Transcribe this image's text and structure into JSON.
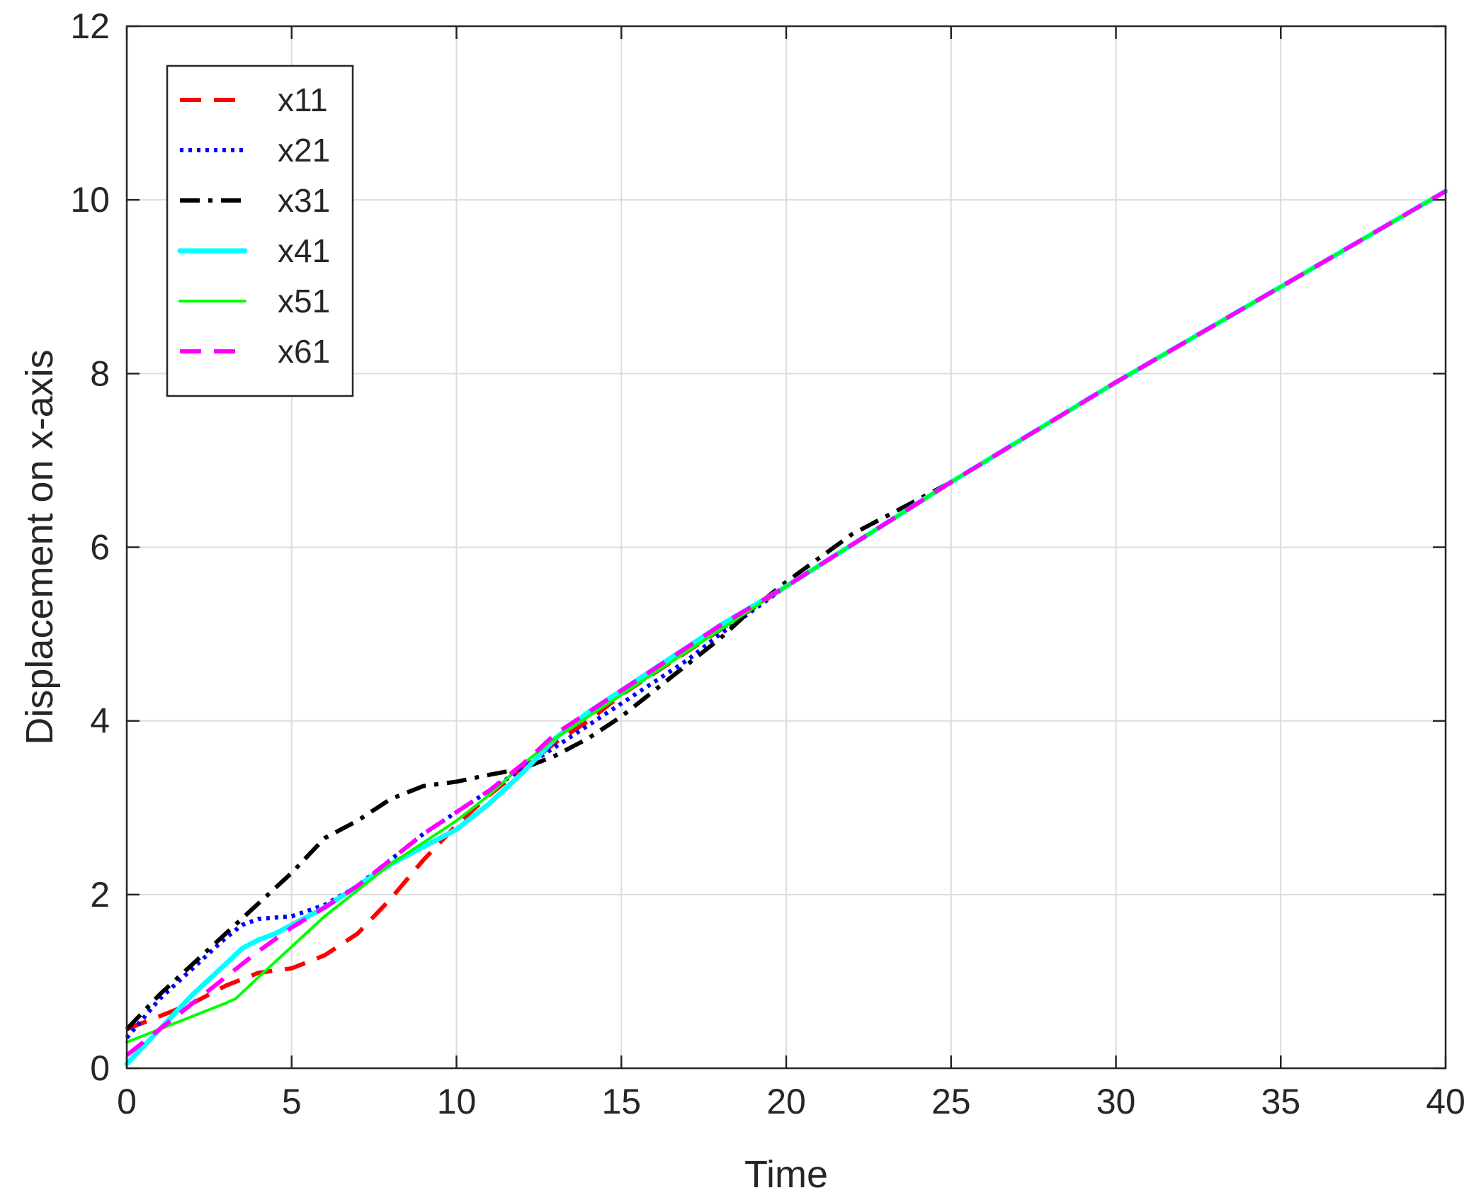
{
  "chart_data": {
    "type": "line",
    "xlabel": "Time",
    "ylabel": "Displacement on x-axis",
    "xlim": [
      0,
      40
    ],
    "ylim": [
      0,
      12
    ],
    "xticks": [
      "0",
      "5",
      "10",
      "15",
      "20",
      "25",
      "30",
      "35",
      "40"
    ],
    "yticks": [
      "0",
      "2",
      "4",
      "6",
      "8",
      "10",
      "12"
    ],
    "grid": true,
    "legend_position": "top-left",
    "series": [
      {
        "name": "x11",
        "color": "#ff0000",
        "style": "dashed",
        "x": [
          0,
          1,
          2,
          3,
          4,
          5,
          6,
          7,
          8,
          9,
          10,
          11,
          12,
          13,
          14,
          15,
          16,
          17,
          18,
          20,
          25,
          30,
          35,
          40
        ],
        "y": [
          0.45,
          0.6,
          0.75,
          0.95,
          1.1,
          1.15,
          1.3,
          1.55,
          1.95,
          2.4,
          2.8,
          3.15,
          3.45,
          3.75,
          4.0,
          4.3,
          4.55,
          4.8,
          5.05,
          5.55,
          6.75,
          7.9,
          9.0,
          10.1
        ]
      },
      {
        "name": "x21",
        "color": "#0000ff",
        "style": "dotted",
        "x": [
          0,
          1,
          2,
          3,
          3.5,
          4,
          5,
          6,
          7,
          8,
          9,
          10,
          11,
          12,
          13,
          14,
          15,
          16,
          17,
          18,
          20,
          25,
          30,
          35,
          40
        ],
        "y": [
          0.35,
          0.8,
          1.15,
          1.5,
          1.65,
          1.72,
          1.75,
          1.88,
          2.1,
          2.4,
          2.7,
          2.95,
          3.2,
          3.45,
          3.7,
          3.95,
          4.2,
          4.45,
          4.7,
          5.0,
          5.55,
          6.75,
          7.9,
          9.0,
          10.1
        ]
      },
      {
        "name": "x31",
        "color": "#000000",
        "style": "dashdot",
        "x": [
          0,
          1,
          2,
          3,
          4,
          5,
          6,
          7,
          8,
          9,
          10,
          11,
          12,
          13,
          14,
          15,
          16,
          17,
          18,
          19,
          20,
          22,
          25,
          30,
          35,
          40
        ],
        "y": [
          0.45,
          0.85,
          1.2,
          1.55,
          1.9,
          2.25,
          2.65,
          2.85,
          3.1,
          3.25,
          3.3,
          3.38,
          3.45,
          3.6,
          3.8,
          4.05,
          4.35,
          4.65,
          4.95,
          5.3,
          5.6,
          6.15,
          6.75,
          7.9,
          9.0,
          10.1
        ]
      },
      {
        "name": "x41",
        "color": "#00ffff",
        "style": "solid-thick",
        "x": [
          0,
          1,
          2,
          3,
          3.5,
          4,
          4.5,
          5,
          6,
          7,
          8,
          9,
          10,
          11,
          12,
          13,
          14,
          15,
          16,
          17,
          18,
          20,
          25,
          30,
          35,
          40
        ],
        "y": [
          0.05,
          0.45,
          0.85,
          1.2,
          1.38,
          1.48,
          1.55,
          1.65,
          1.85,
          2.1,
          2.35,
          2.55,
          2.75,
          3.05,
          3.4,
          3.8,
          4.1,
          4.35,
          4.6,
          4.85,
          5.1,
          5.55,
          6.75,
          7.9,
          9.0,
          10.1
        ]
      },
      {
        "name": "x51",
        "color": "#00ff00",
        "style": "solid",
        "x": [
          0,
          1,
          2,
          3,
          3.3,
          4,
          5,
          6,
          7,
          8,
          9,
          10,
          11,
          12,
          13,
          14,
          15,
          16,
          17,
          18,
          20,
          25,
          30,
          35,
          40
        ],
        "y": [
          0.3,
          0.45,
          0.6,
          0.75,
          0.8,
          1.05,
          1.4,
          1.75,
          2.05,
          2.35,
          2.6,
          2.85,
          3.15,
          3.5,
          3.8,
          4.05,
          4.3,
          4.55,
          4.8,
          5.05,
          5.55,
          6.75,
          7.9,
          9.0,
          10.1
        ]
      },
      {
        "name": "x61",
        "color": "#ff00ff",
        "style": "dashed",
        "x": [
          0,
          1,
          2,
          3,
          4,
          5,
          6,
          7,
          8,
          9,
          10,
          11,
          12,
          13,
          14,
          15,
          16,
          17,
          18,
          20,
          25,
          30,
          35,
          40
        ],
        "y": [
          0.15,
          0.45,
          0.75,
          1.05,
          1.35,
          1.62,
          1.85,
          2.1,
          2.4,
          2.7,
          2.95,
          3.2,
          3.5,
          3.85,
          4.1,
          4.35,
          4.6,
          4.85,
          5.1,
          5.55,
          6.75,
          7.9,
          9.0,
          10.1
        ]
      }
    ]
  }
}
